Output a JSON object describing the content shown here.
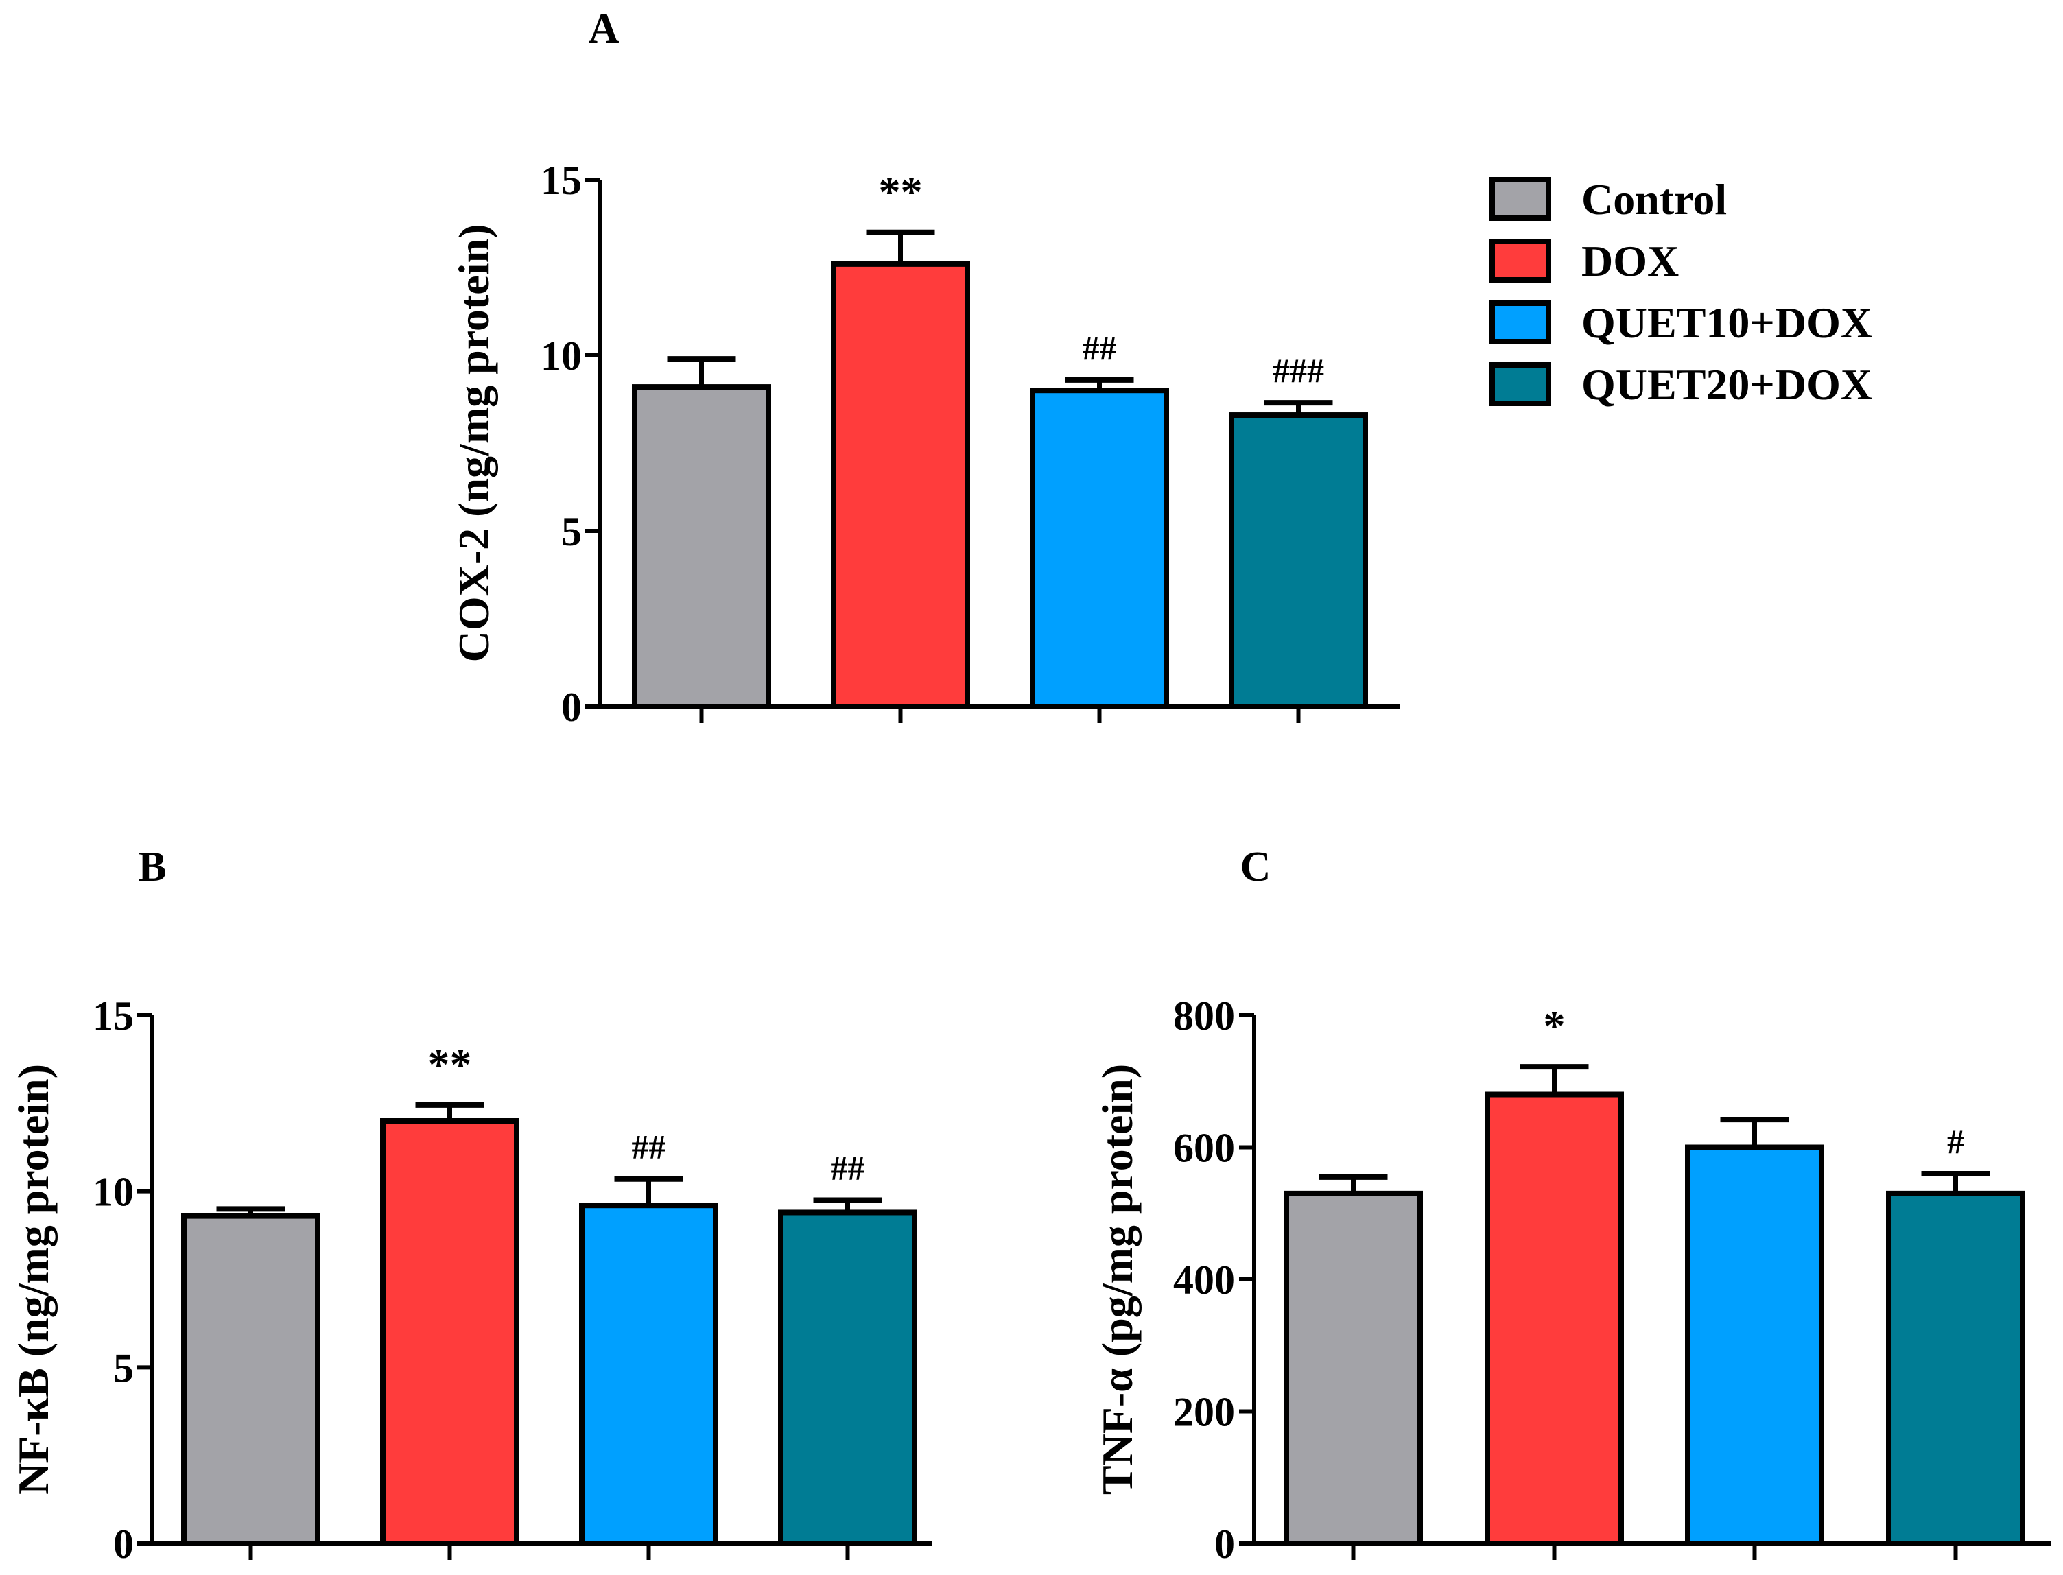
{
  "legend": {
    "items": [
      {
        "label": "Control",
        "color": "#A3A3A8"
      },
      {
        "label": "DOX",
        "color": "#FF3C3C"
      },
      {
        "label": "QUET10+DOX",
        "color": "#00A0FF"
      },
      {
        "label": "QUET20+DOX",
        "color": "#007C94"
      }
    ]
  },
  "chart_data": [
    {
      "panel": "A",
      "type": "bar",
      "categories": [
        "Control",
        "DOX",
        "QUET10+DOX",
        "QUET20+DOX"
      ],
      "values": [
        9.1,
        12.6,
        9.0,
        8.3
      ],
      "errors": [
        0.8,
        0.9,
        0.3,
        0.35
      ],
      "annotations": [
        "",
        "**",
        "##",
        "###"
      ],
      "ylabel": "COX-2 (ng/mg protein)",
      "ylim": [
        0,
        15
      ],
      "yticks": [
        0,
        5,
        10,
        15
      ],
      "colors": [
        "#A3A3A8",
        "#FF3C3C",
        "#00A0FF",
        "#007C94"
      ]
    },
    {
      "panel": "B",
      "type": "bar",
      "categories": [
        "Control",
        "DOX",
        "QUET10+DOX",
        "QUET20+DOX"
      ],
      "values": [
        9.3,
        12.0,
        9.6,
        9.4
      ],
      "errors": [
        0.2,
        0.45,
        0.75,
        0.35
      ],
      "annotations": [
        "",
        "**",
        "##",
        "##"
      ],
      "ylabel": "NF-κB (ng/mg protein)",
      "ylim": [
        0,
        15
      ],
      "yticks": [
        0,
        5,
        10,
        15
      ],
      "colors": [
        "#A3A3A8",
        "#FF3C3C",
        "#00A0FF",
        "#007C94"
      ]
    },
    {
      "panel": "C",
      "type": "bar",
      "categories": [
        "Control",
        "DOX",
        "QUET10+DOX",
        "QUET20+DOX"
      ],
      "values": [
        530,
        680,
        600,
        530
      ],
      "errors": [
        25,
        42,
        42,
        30
      ],
      "annotations": [
        "",
        "*",
        "",
        "#"
      ],
      "ylabel": "TNF-α (pg/mg protein)",
      "ylim": [
        0,
        800
      ],
      "yticks": [
        0,
        200,
        400,
        600,
        800
      ],
      "colors": [
        "#A3A3A8",
        "#FF3C3C",
        "#00A0FF",
        "#007C94"
      ]
    }
  ]
}
